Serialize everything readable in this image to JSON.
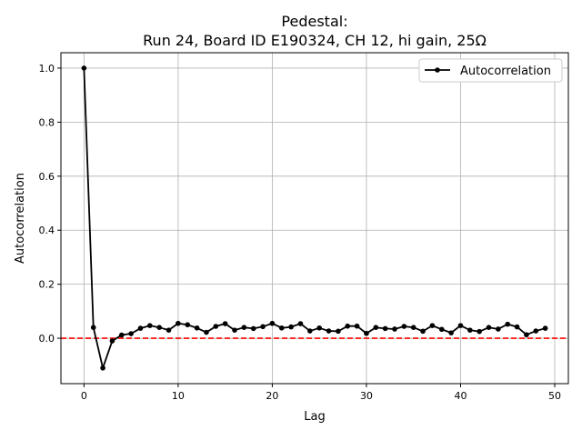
{
  "chart_data": {
    "type": "line",
    "title_line1": "Pedestal:",
    "title_line2": "Run 24, Board ID E190324, CH 12, hi gain, 25Ω",
    "xlabel": "Lag",
    "ylabel": "Autocorrelation",
    "xlim": [
      -2.45,
      51.45
    ],
    "ylim": [
      -0.168,
      1.057
    ],
    "xticks": [
      0,
      10,
      20,
      30,
      40,
      50
    ],
    "yticks": [
      0.0,
      0.2,
      0.4,
      0.6,
      0.8,
      1.0
    ],
    "ytick_labels": [
      "0.0",
      "0.2",
      "0.4",
      "0.6",
      "0.8",
      "1.0"
    ],
    "grid": true,
    "legend": {
      "placement": "top-right",
      "entries": [
        "Autocorrelation"
      ]
    },
    "reference_line": {
      "y": 0,
      "color": "#ff0000",
      "style": "dashed"
    },
    "series": [
      {
        "name": "Autocorrelation",
        "color": "#000000",
        "x": [
          0,
          1,
          2,
          3,
          4,
          5,
          6,
          7,
          8,
          9,
          10,
          11,
          12,
          13,
          14,
          15,
          16,
          17,
          18,
          19,
          20,
          21,
          22,
          23,
          24,
          25,
          26,
          27,
          28,
          29,
          30,
          31,
          32,
          33,
          34,
          35,
          36,
          37,
          38,
          39,
          40,
          41,
          42,
          43,
          44,
          45,
          46,
          47,
          48,
          49
        ],
        "y": [
          1.0,
          0.04,
          -0.11,
          -0.01,
          0.012,
          0.017,
          0.037,
          0.047,
          0.04,
          0.03,
          0.055,
          0.05,
          0.038,
          0.022,
          0.044,
          0.054,
          0.03,
          0.04,
          0.036,
          0.043,
          0.055,
          0.038,
          0.042,
          0.054,
          0.027,
          0.038,
          0.027,
          0.026,
          0.045,
          0.045,
          0.018,
          0.04,
          0.036,
          0.034,
          0.044,
          0.04,
          0.026,
          0.047,
          0.033,
          0.02,
          0.047,
          0.03,
          0.025,
          0.04,
          0.034,
          0.052,
          0.042,
          0.013,
          0.027,
          0.037
        ]
      }
    ]
  }
}
